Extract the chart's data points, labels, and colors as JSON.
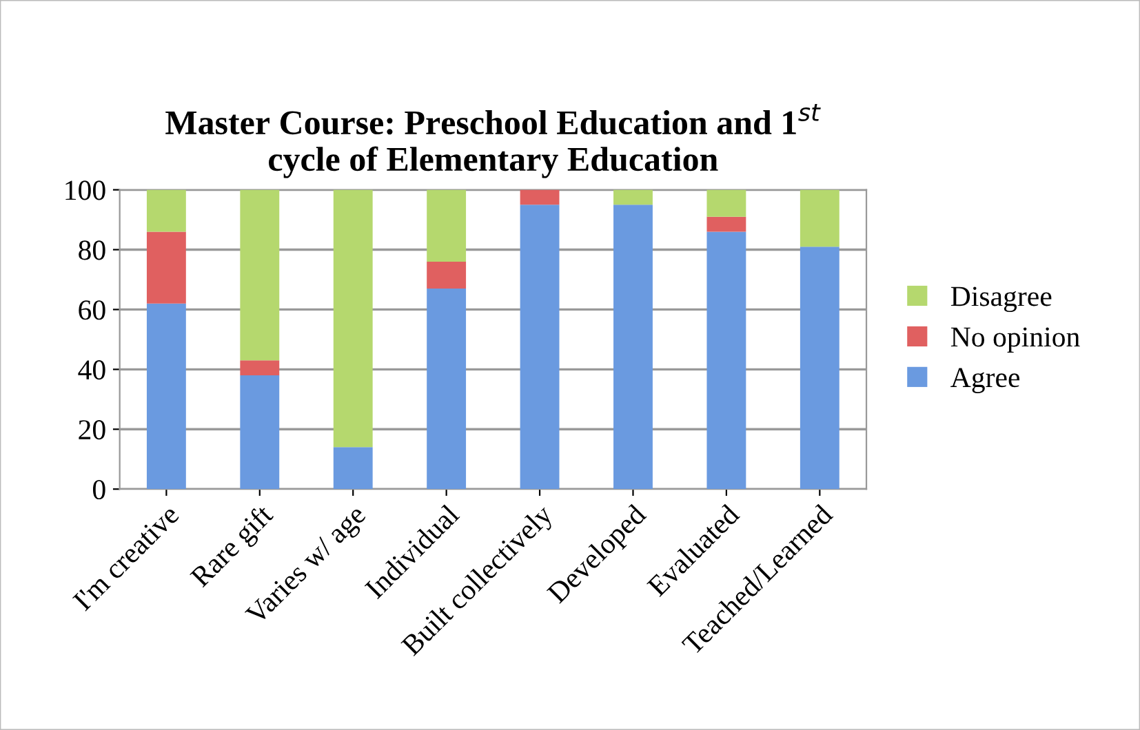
{
  "chart_data": {
    "type": "bar",
    "title": "Master Course: Preschool Education and 1$^{st}$\ncycle of Elementary Education",
    "categories": [
      "I'm creative",
      "Rare gift",
      "Varies w/ age",
      "Individual",
      "Built collectively",
      "Developed",
      "Evaluated",
      "Teached/Learned"
    ],
    "stacked": true,
    "series": [
      {
        "name": "Agree",
        "color": "#6a9ae0",
        "values": [
          62,
          38,
          14,
          67,
          95,
          95,
          86,
          81
        ]
      },
      {
        "name": "No opinion",
        "color": "#e06060",
        "values": [
          24,
          5,
          0,
          9,
          5,
          0,
          5,
          0
        ]
      },
      {
        "name": "Disagree",
        "color": "#b5d86e",
        "values": [
          14,
          57,
          86,
          24,
          0,
          5,
          9,
          19
        ]
      }
    ],
    "ylim": [
      0,
      100
    ],
    "yticks": [
      0,
      20,
      40,
      60,
      80,
      100
    ],
    "grid": "y",
    "legend": "right"
  }
}
